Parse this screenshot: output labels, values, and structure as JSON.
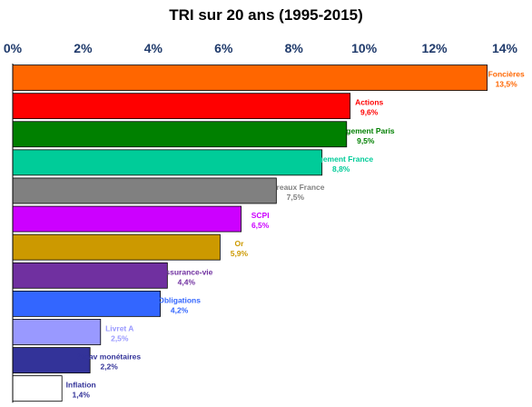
{
  "chart_data": {
    "type": "bar",
    "orientation": "horizontal",
    "title": "TRI sur 20 ans (1995-2015)",
    "xlabel": "",
    "ylabel": "",
    "xlim": [
      0,
      14
    ],
    "x_ticks": [
      "0%",
      "2%",
      "4%",
      "6%",
      "8%",
      "10%",
      "12%",
      "14%"
    ],
    "x_tick_values": [
      0,
      2,
      4,
      6,
      8,
      10,
      12,
      14
    ],
    "axis_position": "top",
    "grid": false,
    "legend": "none",
    "bars": [
      {
        "category": "Foncières",
        "value": 13.5,
        "value_label": "13,5%",
        "color": "#ff6600",
        "label_color": "#ff6600"
      },
      {
        "category": "Actions",
        "value": 9.6,
        "value_label": "9,6%",
        "color": "#ff0000",
        "label_color": "#ff0000"
      },
      {
        "category": "Logement Paris",
        "value": 9.5,
        "value_label": "9,5%",
        "color": "#008000",
        "label_color": "#008000"
      },
      {
        "category": "Logement France",
        "value": 8.8,
        "value_label": "8,8%",
        "color": "#00cc99",
        "label_color": "#00cc99"
      },
      {
        "category": "Bureaux France",
        "value": 7.5,
        "value_label": "7,5%",
        "color": "#808080",
        "label_color": "#808080"
      },
      {
        "category": "SCPI",
        "value": 6.5,
        "value_label": "6,5%",
        "color": "#cc00ff",
        "label_color": "#cc00ff"
      },
      {
        "category": "Or",
        "value": 5.9,
        "value_label": "5,9%",
        "color": "#cc9900",
        "label_color": "#cc9900"
      },
      {
        "category": "Assurance-vie",
        "value": 4.4,
        "value_label": "4,4%",
        "color": "#7030a0",
        "label_color": "#7030a0"
      },
      {
        "category": "Obligations",
        "value": 4.2,
        "value_label": "4,2%",
        "color": "#3366ff",
        "label_color": "#3366ff"
      },
      {
        "category": "Livret A",
        "value": 2.5,
        "value_label": "2,5%",
        "color": "#9999ff",
        "label_color": "#9999ff"
      },
      {
        "category": "Sicav monétaires",
        "value": 2.2,
        "value_label": "2,2%",
        "color": "#333399",
        "label_color": "#333399"
      },
      {
        "category": "Inflation",
        "value": 1.4,
        "value_label": "1,4%",
        "color": "#ffffff",
        "label_color": "#333399"
      }
    ]
  }
}
